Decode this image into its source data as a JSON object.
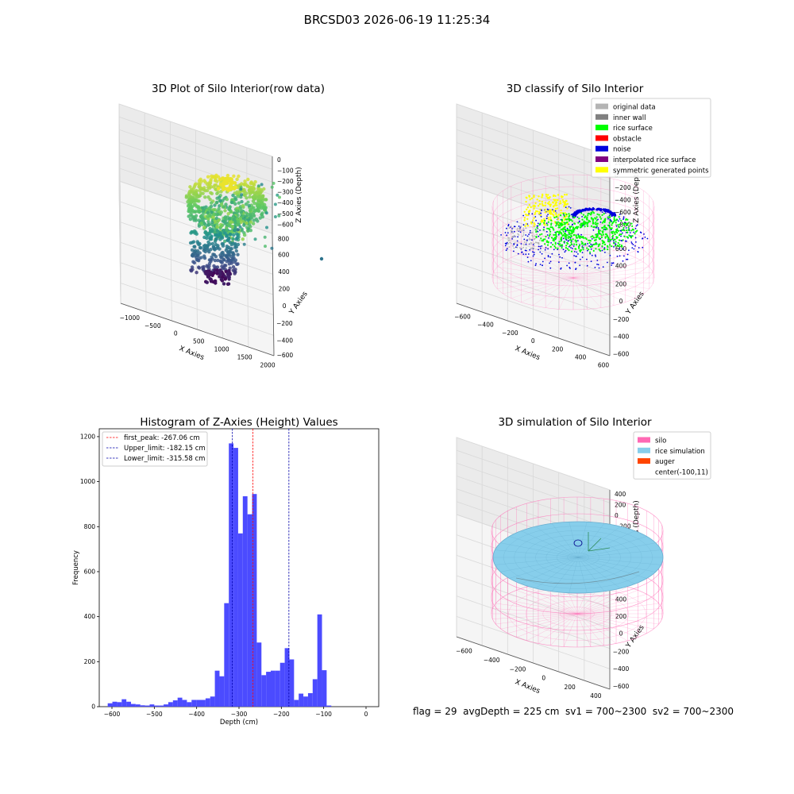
{
  "figure_title": "BRCSD03 2026-06-19 11:25:34",
  "footer_text": "flag = 29  avgDepth = 225 cm  sv1 = 700~2300  sv2 = 700~2300",
  "colors": {
    "hist_bar": "#4b4bff",
    "first_peak": "#ff0000",
    "limit_lines": "#0000aa",
    "silo_wire": "#ff69b4",
    "rice_sim": "#87ceeb",
    "rice_surface": "#00ff00",
    "noise": "#0000dd",
    "symmetric": "#ffff00"
  },
  "chart_data": [
    {
      "type": "scatter",
      "panel": "raw",
      "title": "3D Plot of Silo Interior(row data)",
      "xlabel": "X Axies",
      "ylabel": "Y Axies",
      "zlabel": "Z Axies (Depth)",
      "x_ticks": [
        "−1000",
        "−500",
        "0",
        "500",
        "1000",
        "1500",
        "2000"
      ],
      "y_ticks": [
        "−600",
        "−400",
        "−200",
        "0",
        "200",
        "400",
        "600",
        "800"
      ],
      "z_ticks": [
        "0",
        "−100",
        "−200",
        "−300",
        "−400",
        "−500",
        "−600"
      ],
      "xlim": [
        -1300,
        2000
      ],
      "ylim": [
        -650,
        850
      ],
      "zlim": [
        -650,
        30
      ],
      "colormap": "viridis"
    },
    {
      "type": "scatter",
      "panel": "classify",
      "title": "3D classify of Silo Interior",
      "xlabel": "X Axies",
      "ylabel": "Y Axies",
      "zlabel": "Z Axies (Depth)",
      "x_ticks": [
        "−600",
        "−400",
        "−200",
        "0",
        "200",
        "400",
        "600"
      ],
      "y_ticks": [
        "−600",
        "−400",
        "−200",
        "0",
        "200",
        "400",
        "600"
      ],
      "z_ticks": [
        "200",
        "0",
        "−200",
        "−400",
        "−600",
        "−800"
      ],
      "xlim": [
        -650,
        650
      ],
      "ylim": [
        -650,
        650
      ],
      "zlim": [
        -900,
        250
      ],
      "legend_position": "top-right",
      "legend": [
        {
          "label": "original data",
          "color": "#b4b4b4"
        },
        {
          "label": "inner wall",
          "color": "#808080"
        },
        {
          "label": "rice surface",
          "color": "#00ff00"
        },
        {
          "label": "obstacle",
          "color": "#ff0000"
        },
        {
          "label": "noise",
          "color": "#0000dd"
        },
        {
          "label": "interpolated rice surface",
          "color": "#800080"
        },
        {
          "label": "symmetric generated points",
          "color": "#ffff00"
        }
      ]
    },
    {
      "type": "bar",
      "panel": "histogram",
      "title": "Histogram of Z-Axies (Height) Values",
      "xlabel": "Depth (cm)",
      "ylabel": "Frequency",
      "xlim": [
        -630,
        30
      ],
      "ylim": [
        0,
        1235
      ],
      "x_ticks": [
        -600,
        -500,
        -400,
        -300,
        -200,
        -100,
        0
      ],
      "y_ticks": [
        0,
        200,
        400,
        600,
        800,
        1000,
        1200
      ],
      "bin_start": -610,
      "bin_width": 11,
      "values": [
        15,
        22,
        20,
        33,
        22,
        12,
        10,
        6,
        5,
        10,
        5,
        5,
        10,
        20,
        28,
        40,
        30,
        20,
        30,
        30,
        30,
        37,
        45,
        160,
        135,
        460,
        1170,
        1150,
        770,
        935,
        855,
        945,
        285,
        140,
        155,
        160,
        160,
        195,
        260,
        210,
        30,
        58,
        45,
        60,
        122,
        410,
        162,
        5
      ],
      "legend_position": "top-left",
      "lines": [
        {
          "label": "first_peak: -267.06 cm",
          "x": -267.06,
          "color": "#ff0000"
        },
        {
          "label": "Upper_limit: -182.15 cm",
          "x": -182.15,
          "color": "#0000aa"
        },
        {
          "label": "Lower_limit: -315.58 cm",
          "x": -315.58,
          "color": "#0000aa"
        }
      ]
    },
    {
      "type": "scatter",
      "panel": "simulation",
      "title": "3D simulation of Silo Interior",
      "xlabel": "X Axies",
      "ylabel": "Y Axies",
      "zlabel": "Z Axies (Depth)",
      "x_ticks": [
        "−600",
        "−400",
        "−200",
        "0",
        "200",
        "400"
      ],
      "y_ticks": [
        "−600",
        "−400",
        "−200",
        "0",
        "200",
        "400",
        "600"
      ],
      "z_ticks": [
        "400",
        "200",
        "0",
        "−200",
        "−400",
        "−600",
        "−800"
      ],
      "xlim": [
        -700,
        500
      ],
      "ylim": [
        -650,
        650
      ],
      "zlim": [
        -900,
        450
      ],
      "legend_position": "top-right",
      "legend": [
        {
          "label": "silo",
          "color": "#ff69b4"
        },
        {
          "label": "rice simulation",
          "color": "#87ceeb"
        },
        {
          "label": "auger",
          "color": "#ff4500"
        },
        {
          "label": "center(-100,11)",
          "color": "#ffffff"
        }
      ]
    }
  ]
}
